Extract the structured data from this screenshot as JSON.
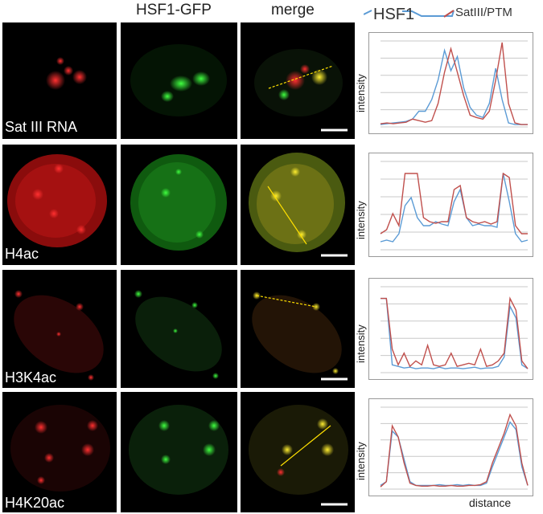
{
  "headers": {
    "col2": "HSF1-GFP",
    "col3": "merge"
  },
  "legend": {
    "series1": "HSF1",
    "series2": "SatIII/PTM",
    "color1": "#5b9bd5",
    "color2": "#c0504d"
  },
  "rows": [
    {
      "label": "Sat III RNA"
    },
    {
      "label": "H4ac"
    },
    {
      "label": "H3K4ac"
    },
    {
      "label": "H4K20ac"
    }
  ],
  "axes": {
    "ylabel": "intensity",
    "xlabel": "distance"
  },
  "chart_data": [
    {
      "type": "line",
      "row": "Sat III RNA",
      "xlabel": "distance",
      "ylabel": "intensity",
      "series": [
        {
          "name": "HSF1",
          "values": [
            0.03,
            0.04,
            0.05,
            0.06,
            0.07,
            0.1,
            0.2,
            0.2,
            0.35,
            0.6,
            0.98,
            0.72,
            0.9,
            0.5,
            0.25,
            0.15,
            0.12,
            0.3,
            0.75,
            0.35,
            0.05,
            0.03,
            0.03,
            0.03
          ]
        },
        {
          "name": "SatIII/PTM",
          "values": [
            0.04,
            0.05,
            0.04,
            0.05,
            0.06,
            0.1,
            0.08,
            0.06,
            0.08,
            0.3,
            0.7,
            1.0,
            0.7,
            0.4,
            0.15,
            0.12,
            0.1,
            0.2,
            0.6,
            1.08,
            0.3,
            0.05,
            0.03,
            0.03
          ]
        }
      ]
    },
    {
      "type": "line",
      "row": "H4ac",
      "xlabel": "distance",
      "ylabel": "intensity",
      "series": [
        {
          "name": "HSF1",
          "values": [
            0.1,
            0.12,
            0.1,
            0.2,
            0.55,
            0.65,
            0.4,
            0.3,
            0.3,
            0.35,
            0.32,
            0.3,
            0.6,
            0.75,
            0.4,
            0.3,
            0.32,
            0.3,
            0.3,
            0.28,
            0.95,
            0.6,
            0.2,
            0.1,
            0.12
          ]
        },
        {
          "name": "SatIII/PTM",
          "values": [
            0.2,
            0.25,
            0.45,
            0.3,
            0.95,
            0.95,
            0.95,
            0.4,
            0.35,
            0.33,
            0.35,
            0.35,
            0.75,
            0.8,
            0.4,
            0.35,
            0.33,
            0.35,
            0.32,
            0.35,
            0.95,
            0.9,
            0.3,
            0.2,
            0.2
          ]
        }
      ]
    },
    {
      "type": "line",
      "row": "H3K4ac",
      "xlabel": "distance",
      "ylabel": "intensity",
      "series": [
        {
          "name": "HSF1",
          "values": [
            0.95,
            0.95,
            0.1,
            0.08,
            0.06,
            0.07,
            0.05,
            0.06,
            0.06,
            0.05,
            0.07,
            0.05,
            0.06,
            0.06,
            0.05,
            0.06,
            0.07,
            0.05,
            0.06,
            0.06,
            0.08,
            0.2,
            0.85,
            0.7,
            0.1,
            0.05
          ]
        },
        {
          "name": "SatIII/PTM",
          "values": [
            0.95,
            0.95,
            0.3,
            0.1,
            0.25,
            0.08,
            0.15,
            0.1,
            0.35,
            0.1,
            0.08,
            0.1,
            0.25,
            0.08,
            0.1,
            0.12,
            0.1,
            0.3,
            0.08,
            0.1,
            0.15,
            0.25,
            0.95,
            0.8,
            0.15,
            0.05
          ]
        }
      ]
    },
    {
      "type": "line",
      "row": "H4K20ac",
      "xlabel": "distance",
      "ylabel": "intensity",
      "series": [
        {
          "name": "HSF1",
          "values": [
            0.05,
            0.1,
            0.78,
            0.7,
            0.4,
            0.1,
            0.05,
            0.05,
            0.05,
            0.05,
            0.06,
            0.05,
            0.05,
            0.06,
            0.05,
            0.06,
            0.05,
            0.05,
            0.08,
            0.3,
            0.5,
            0.7,
            0.9,
            0.8,
            0.3,
            0.05
          ]
        },
        {
          "name": "SatIII/PTM",
          "values": [
            0.03,
            0.1,
            0.85,
            0.7,
            0.35,
            0.08,
            0.05,
            0.04,
            0.04,
            0.05,
            0.04,
            0.04,
            0.05,
            0.04,
            0.04,
            0.05,
            0.05,
            0.06,
            0.1,
            0.35,
            0.55,
            0.75,
            1.0,
            0.85,
            0.35,
            0.05
          ]
        }
      ]
    }
  ]
}
